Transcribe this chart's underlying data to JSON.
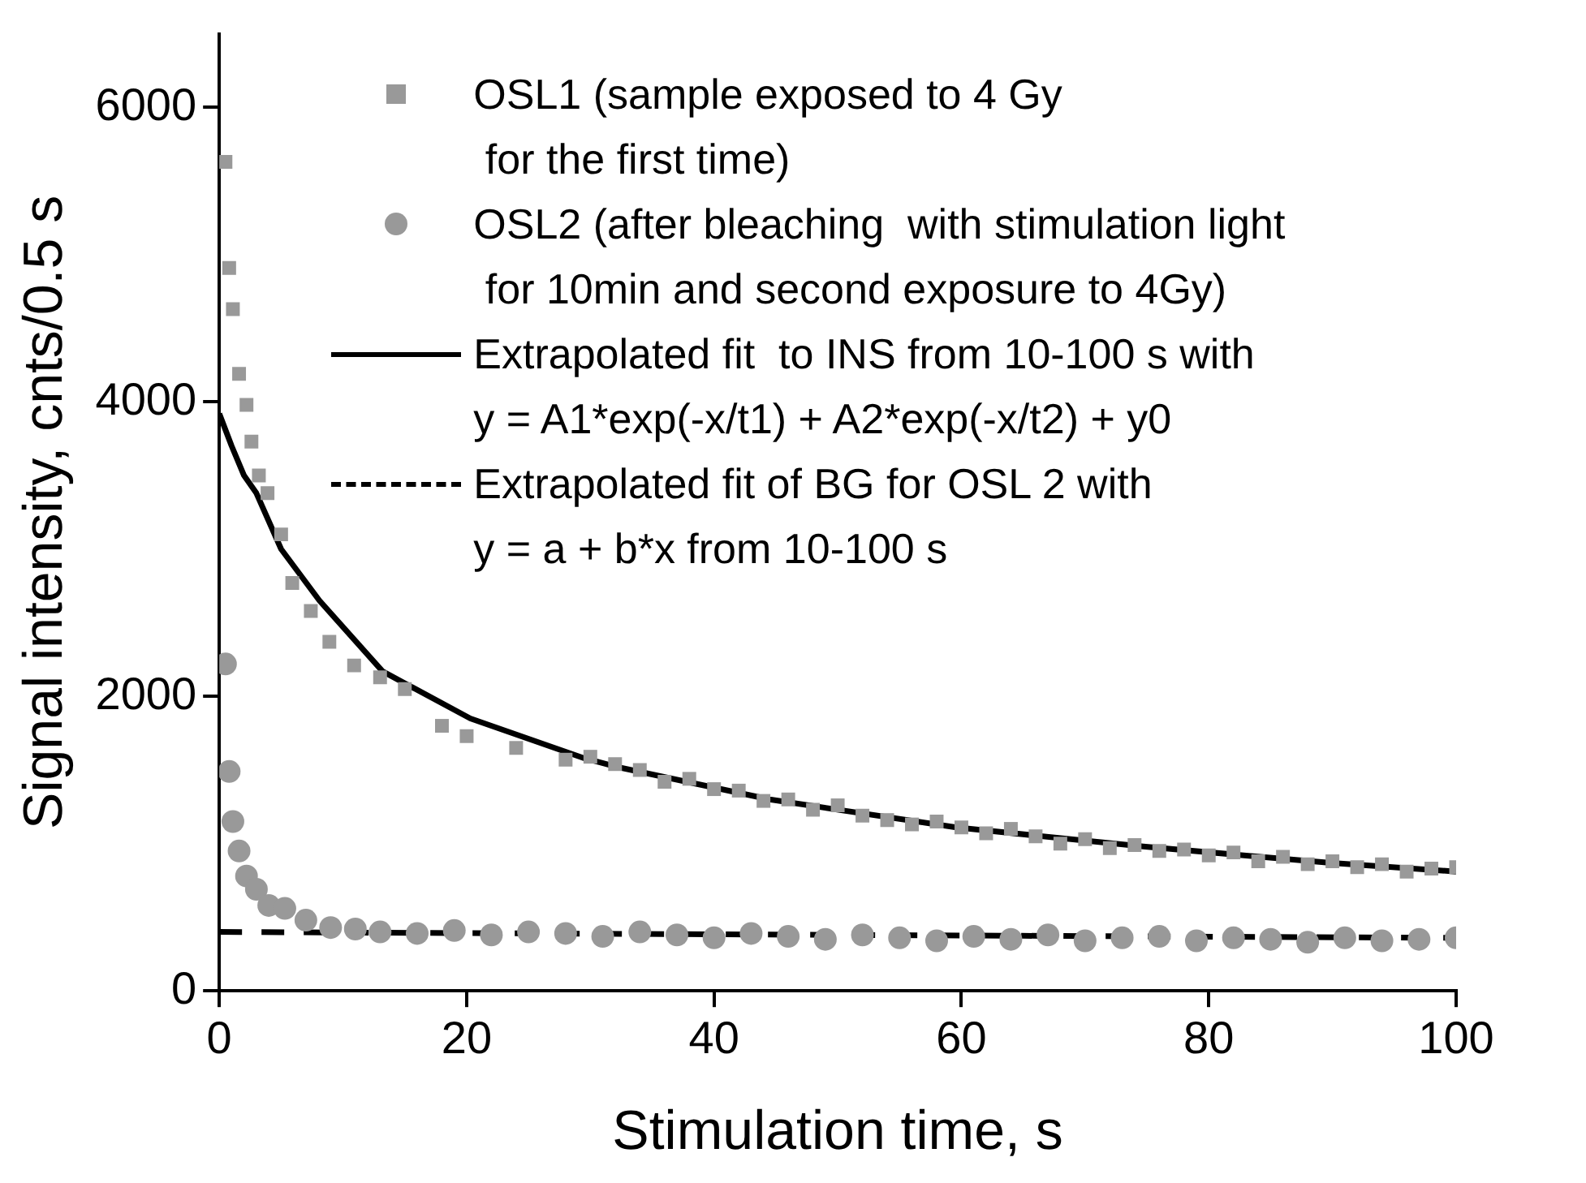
{
  "chart_data": {
    "type": "scatter",
    "xlabel": "Stimulation time, s",
    "ylabel": "Signal intensity, cnts/0.5 s",
    "xlim": [
      0,
      100
    ],
    "xticks": [
      0,
      20,
      40,
      60,
      80,
      100
    ],
    "ylim": [
      0,
      6500
    ],
    "yticks": [
      0,
      2000,
      4000,
      6000
    ],
    "grid": false,
    "legend": "top",
    "series": [
      {
        "name": "OSL1 (sample exposed to 4 Gy\n for the first time)",
        "type": "scatter",
        "marker": "square",
        "color": "#999999",
        "x": [
          0.5,
          0.8,
          1.1,
          1.6,
          2.2,
          2.6,
          3.2,
          3.9,
          5,
          5.9,
          7.4,
          8.9,
          10.9,
          13,
          15,
          18,
          20,
          24,
          28,
          30,
          32,
          34,
          36,
          38,
          40,
          42,
          44,
          46,
          48,
          50,
          52,
          54,
          56,
          58,
          60,
          62,
          64,
          66,
          68,
          70,
          72,
          74,
          76,
          78,
          80,
          82,
          84,
          86,
          88,
          90,
          92,
          94,
          96,
          98,
          100
        ],
        "values": [
          5630,
          4910,
          4630,
          4190,
          3980,
          3730,
          3500,
          3380,
          3100,
          2770,
          2580,
          2370,
          2210,
          2130,
          2050,
          1800,
          1730,
          1650,
          1570,
          1590,
          1540,
          1500,
          1420,
          1440,
          1370,
          1360,
          1290,
          1300,
          1230,
          1260,
          1190,
          1160,
          1130,
          1150,
          1110,
          1070,
          1100,
          1050,
          1000,
          1030,
          970,
          990,
          950,
          960,
          920,
          940,
          880,
          910,
          860,
          880,
          840,
          860,
          810,
          830,
          840
        ]
      },
      {
        "name": "OSL2 (after bleaching  with stimulation light\n for 10min and second exposure to 4Gy)",
        "type": "scatter",
        "marker": "circle",
        "color": "#999999",
        "x": [
          0.5,
          0.8,
          1.1,
          1.6,
          2.2,
          3,
          4,
          5.3,
          7,
          9,
          11,
          13,
          16,
          19,
          22,
          25,
          28,
          31,
          34,
          37,
          40,
          43,
          46,
          49,
          52,
          55,
          58,
          61,
          64,
          67,
          70,
          73,
          76,
          79,
          82,
          85,
          88,
          91,
          94,
          97,
          100
        ],
        "values": [
          2220,
          1490,
          1150,
          950,
          780,
          690,
          580,
          560,
          480,
          430,
          420,
          400,
          390,
          410,
          380,
          400,
          390,
          370,
          400,
          380,
          360,
          390,
          370,
          350,
          380,
          360,
          340,
          370,
          350,
          380,
          340,
          360,
          370,
          340,
          360,
          350,
          330,
          360,
          340,
          350,
          360
        ]
      },
      {
        "name": "Extrapolated fit  to INS from 10-100 s with\ny = A1*exp(-x/t1) + A2*exp(-x/t2) + y0",
        "type": "line",
        "line_style": "solid",
        "marker": "none",
        "color": "#000000",
        "x": [
          0,
          1,
          2,
          3,
          5,
          8.1,
          13.2,
          20.3,
          29.5,
          32.2,
          44.5,
          59.6,
          74.7,
          89.7,
          100
        ],
        "values": [
          3920,
          3700,
          3500,
          3380,
          3000,
          2650,
          2170,
          1850,
          1580,
          1520,
          1300,
          1110,
          980,
          870,
          810
        ]
      },
      {
        "name": "Extrapolated fit of BG for OSL 2 with\ny = a + b*x from 10-100 s",
        "type": "line",
        "line_style": "dashed",
        "marker": "none",
        "color": "#000000",
        "x": [
          0,
          100
        ],
        "values": [
          400,
          360
        ]
      }
    ]
  }
}
